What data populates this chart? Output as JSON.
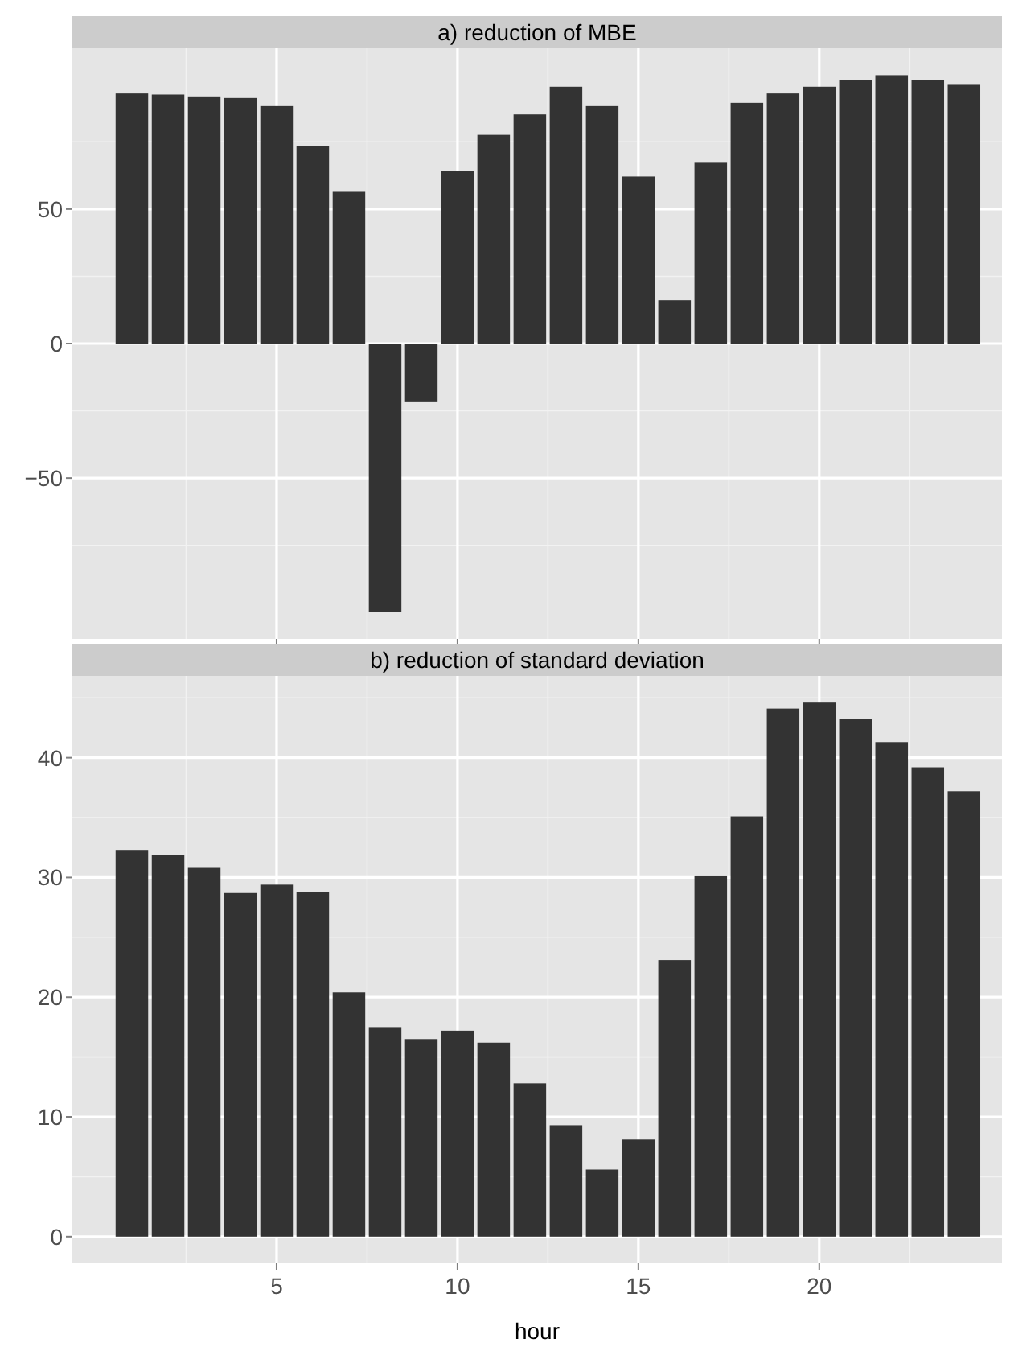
{
  "chart_data": [
    {
      "type": "bar",
      "title": "a) reduction of MBE",
      "x": [
        1,
        2,
        3,
        4,
        5,
        6,
        7,
        8,
        9,
        10,
        11,
        12,
        13,
        14,
        15,
        16,
        17,
        18,
        19,
        20,
        21,
        22,
        23,
        24
      ],
      "values": [
        93.0,
        92.6,
        91.9,
        91.3,
        88.3,
        73.3,
        56.7,
        -99.8,
        -21.5,
        64.3,
        77.6,
        85.2,
        95.5,
        88.3,
        62.1,
        16.1,
        67.5,
        89.5,
        93.0,
        95.5,
        98.0,
        99.8,
        98.0,
        96.2
      ],
      "color": "#333333",
      "xlim": [
        -0.645,
        25.05
      ],
      "xticks": [
        5,
        10,
        15,
        20
      ],
      "ylim": [
        -109.8,
        109.8
      ],
      "yticks": [
        -50,
        0,
        50
      ],
      "grid": true,
      "tick_labels": "y"
    },
    {
      "type": "bar",
      "title": "b) reduction of standard deviation",
      "xlabel": "hour",
      "x": [
        1,
        2,
        3,
        4,
        5,
        6,
        7,
        8,
        9,
        10,
        11,
        12,
        13,
        14,
        15,
        16,
        17,
        18,
        19,
        20,
        21,
        22,
        23,
        24
      ],
      "values": [
        32.3,
        31.9,
        30.8,
        28.7,
        29.4,
        28.8,
        20.4,
        17.5,
        16.5,
        17.2,
        16.2,
        12.8,
        9.3,
        5.6,
        8.1,
        23.1,
        30.1,
        35.1,
        44.1,
        44.6,
        43.2,
        41.3,
        39.2,
        37.2
      ],
      "color": "#333333",
      "xlim": [
        -0.645,
        25.05
      ],
      "xticks": [
        5,
        10,
        15,
        20
      ],
      "ylim": [
        -2.23,
        46.83
      ],
      "yticks": [
        0,
        10,
        20,
        30,
        40
      ],
      "grid": true
    }
  ]
}
